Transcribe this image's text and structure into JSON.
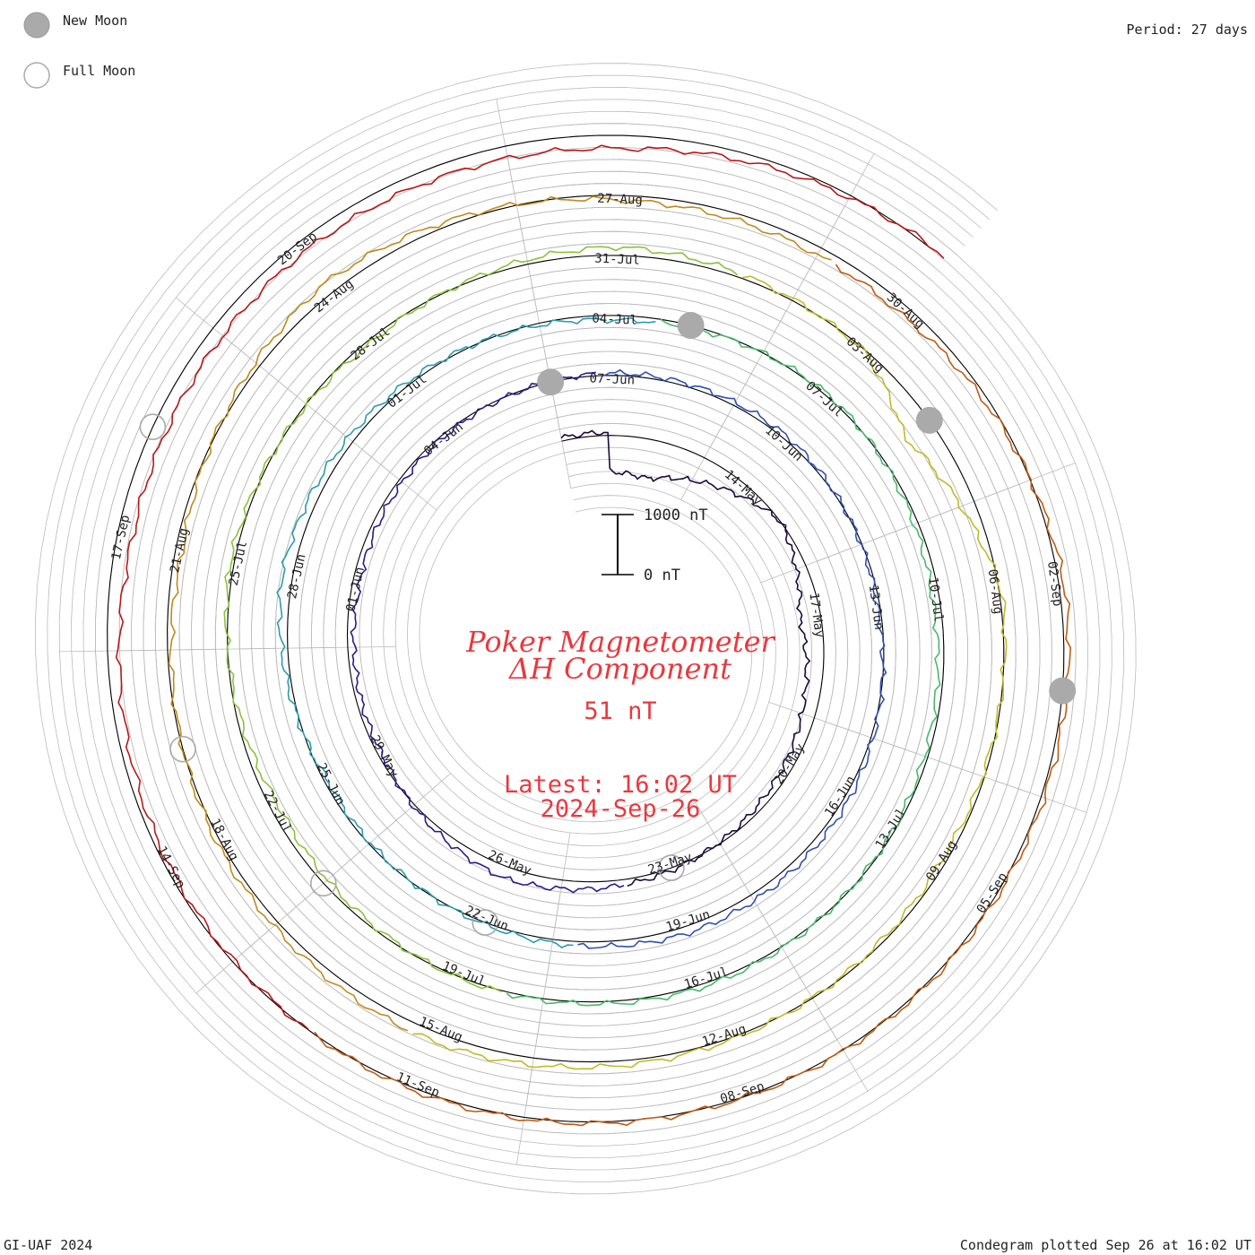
{
  "legend": {
    "new_moon": "New Moon",
    "full_moon": "Full Moon",
    "new_moon_color": "#aaaaaa",
    "full_moon_color": "#aaaaaa"
  },
  "period_label": "Period: 27 days",
  "footer_left": "GI-UAF 2024",
  "footer_right": "Condegram plotted Sep 26 at 16:02 UT",
  "title_line1": "Poker Magnetometer",
  "title_line2": "ΔH Component",
  "current_value": "51 nT",
  "latest_line1": "Latest: 16:02 UT",
  "latest_line2": "2024-Sep-26",
  "scale_bar": {
    "top_label": "1000 nT",
    "bottom_label": "0 nT"
  },
  "colors": {
    "title": "#e8393f",
    "grid": "#bbbbbb",
    "baseline": "#000000"
  },
  "chart_data": {
    "type": "line",
    "layout": "spiral condegram",
    "station": "Poker",
    "component": "ΔH",
    "period_days": 27,
    "start": "2024-05-10",
    "end": "2024-09-26",
    "x_unit": "date (UT)",
    "y_unit": "nT",
    "date_labels": [
      "14-May",
      "17-May",
      "20-May",
      "23-May",
      "26-May",
      "29-May",
      "01-Jun",
      "04-Jun",
      "07-Jun",
      "10-Jun",
      "13-Jun",
      "16-Jun",
      "19-Jun",
      "22-Jun",
      "25-Jun",
      "28-Jun",
      "01-Jul",
      "04-Jul",
      "07-Jul",
      "10-Jul",
      "13-Jul",
      "16-Jul",
      "19-Jul",
      "22-Jul",
      "25-Jul",
      "28-Jul",
      "31-Jul",
      "03-Aug",
      "06-Aug",
      "09-Aug",
      "12-Aug",
      "15-Aug",
      "18-Aug",
      "21-Aug",
      "24-Aug",
      "27-Aug",
      "30-Aug",
      "02-Sep",
      "05-Sep",
      "08-Sep",
      "11-Sep",
      "14-Sep",
      "17-Sep",
      "20-Sep"
    ],
    "color_by_period": [
      "#1a0a3c",
      "#2a1a8c",
      "#2f4fb0",
      "#2a9cb0",
      "#49b86a",
      "#8ac23a",
      "#c0ba28",
      "#c08a1a",
      "#c05a12",
      "#b81818"
    ],
    "series_points": [
      [
        "2024-05-11",
        -600
      ],
      [
        "2024-05-12",
        -650
      ],
      [
        "2024-05-15",
        10
      ],
      [
        "2024-05-17",
        -350
      ],
      [
        "2024-05-20",
        -150
      ],
      [
        "2024-05-23",
        40
      ],
      [
        "2024-05-26",
        200
      ],
      [
        "2024-05-29",
        -60
      ],
      [
        "2024-06-01",
        -120
      ],
      [
        "2024-06-04",
        -40
      ],
      [
        "2024-06-07",
        40
      ],
      [
        "2024-06-10",
        60
      ],
      [
        "2024-06-13",
        -50
      ],
      [
        "2024-06-16",
        80
      ],
      [
        "2024-06-19",
        120
      ],
      [
        "2024-06-22",
        30
      ],
      [
        "2024-06-25",
        -60
      ],
      [
        "2024-06-28",
        180
      ],
      [
        "2024-07-01",
        60
      ],
      [
        "2024-07-04",
        -80
      ],
      [
        "2024-07-07",
        40
      ],
      [
        "2024-07-10",
        -120
      ],
      [
        "2024-07-13",
        -30
      ],
      [
        "2024-07-16",
        50
      ],
      [
        "2024-07-19",
        20
      ],
      [
        "2024-07-22",
        -140
      ],
      [
        "2024-07-25",
        70
      ],
      [
        "2024-07-28",
        -60
      ],
      [
        "2024-07-31",
        140
      ],
      [
        "2024-08-03",
        -30
      ],
      [
        "2024-08-04",
        -500
      ],
      [
        "2024-08-06",
        40
      ],
      [
        "2024-08-09",
        -80
      ],
      [
        "2024-08-12",
        30
      ],
      [
        "2024-08-15",
        160
      ],
      [
        "2024-08-18",
        60
      ],
      [
        "2024-08-21",
        -120
      ],
      [
        "2024-08-24",
        200
      ],
      [
        "2024-08-27",
        -80
      ],
      [
        "2024-08-30",
        -160
      ],
      [
        "2024-09-02",
        90
      ],
      [
        "2024-09-05",
        30
      ],
      [
        "2024-09-08",
        10
      ],
      [
        "2024-09-11",
        40
      ],
      [
        "2024-09-14",
        -60
      ],
      [
        "2024-09-17",
        -260
      ],
      [
        "2024-09-20",
        -180
      ],
      [
        "2024-09-23",
        -220
      ],
      [
        "2024-09-26",
        51
      ]
    ],
    "new_moon_dates": [
      "2024-06-06",
      "2024-07-05",
      "2024-08-04",
      "2024-09-03"
    ],
    "full_moon_dates": [
      "2024-05-23",
      "2024-06-22",
      "2024-07-21",
      "2024-08-19",
      "2024-09-18"
    ]
  }
}
